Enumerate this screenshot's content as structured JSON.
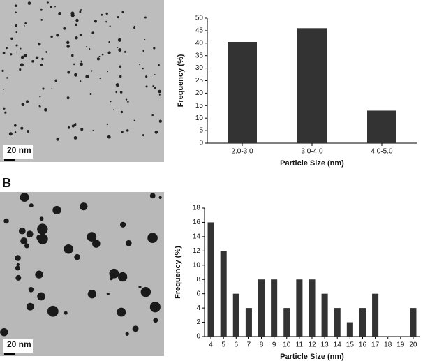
{
  "panel_label": "B",
  "images": [
    {
      "scale_label": "20 nm"
    },
    {
      "scale_label": "20 nm"
    }
  ],
  "chart_data": [
    {
      "type": "bar",
      "categories": [
        "2.0-3.0",
        "3.0-4.0",
        "4.0-5.0"
      ],
      "values": [
        40.5,
        46,
        13
      ],
      "color": "#333333",
      "ylim": [
        0,
        50
      ],
      "yticks": [
        0,
        5,
        10,
        15,
        20,
        25,
        30,
        35,
        40,
        45,
        50
      ],
      "y_label": "Frequency (%)",
      "x_label": "Particle Size (nm)"
    },
    {
      "type": "bar",
      "categories": [
        "4",
        "5",
        "6",
        "7",
        "8",
        "9",
        "10",
        "11",
        "12",
        "13",
        "14",
        "15",
        "16",
        "17",
        "18",
        "19",
        "20"
      ],
      "values": [
        16,
        12,
        6,
        4,
        8,
        8,
        4,
        8,
        8,
        6,
        4,
        2,
        4,
        6,
        0,
        0,
        4
      ],
      "color": "#333333",
      "ylim": [
        0,
        18
      ],
      "yticks": [
        0,
        2,
        4,
        6,
        8,
        10,
        12,
        14,
        16,
        18
      ],
      "y_label": "Frequency (%)",
      "x_label": "Particle Size (nm)"
    }
  ]
}
